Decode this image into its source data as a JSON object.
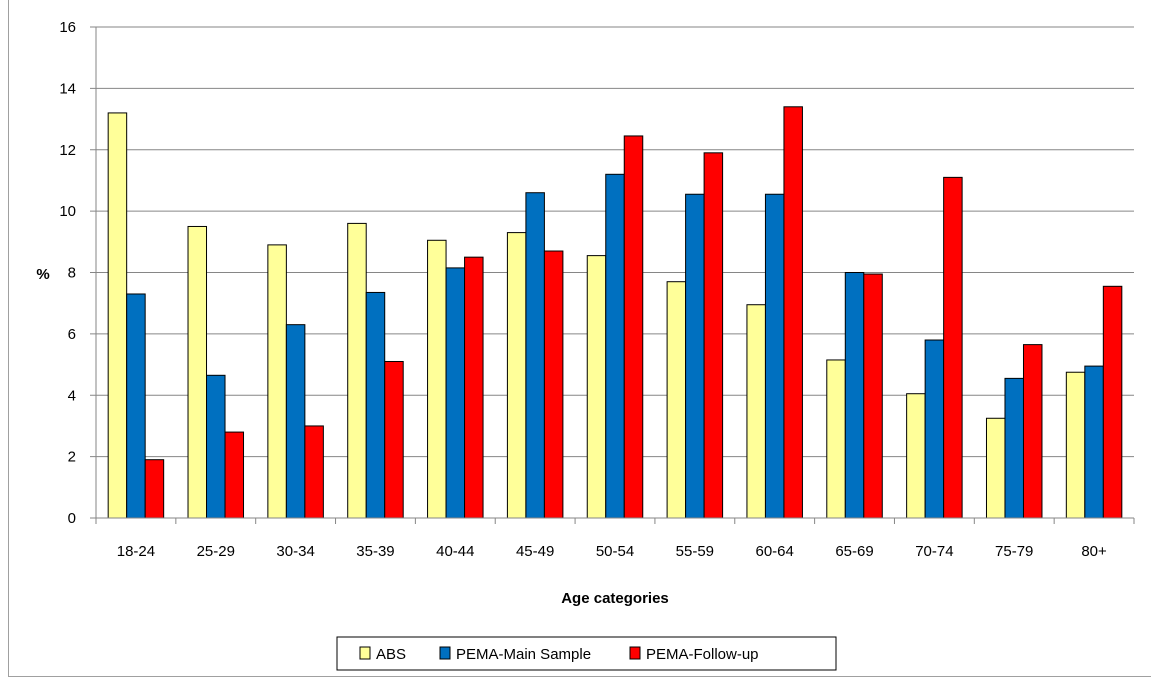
{
  "chart_data": {
    "type": "bar",
    "xlabel": "Age categories",
    "ylabel": "%",
    "ylim": [
      0,
      16
    ],
    "yticks": [
      0,
      2,
      4,
      6,
      8,
      10,
      12,
      14,
      16
    ],
    "grid": true,
    "legend_position": "bottom",
    "categories": [
      "18-24",
      "25-29",
      "30-34",
      "35-39",
      "40-44",
      "45-49",
      "50-54",
      "55-59",
      "60-64",
      "65-69",
      "70-74",
      "75-79",
      "80+"
    ],
    "series": [
      {
        "name": "ABS",
        "color": "#ffff99",
        "values": [
          13.2,
          9.5,
          8.9,
          9.6,
          9.05,
          9.3,
          8.55,
          7.7,
          6.95,
          5.15,
          4.05,
          3.25,
          4.75
        ]
      },
      {
        "name": "PEMA-Main Sample",
        "color": "#0070c0",
        "values": [
          7.3,
          4.65,
          6.3,
          7.35,
          8.15,
          10.6,
          11.2,
          10.55,
          10.55,
          8.0,
          5.8,
          4.55,
          4.95
        ]
      },
      {
        "name": "PEMA-Follow-up",
        "color": "#ff0000",
        "values": [
          1.9,
          2.8,
          3.0,
          5.1,
          8.5,
          8.7,
          12.45,
          11.9,
          13.4,
          7.95,
          11.1,
          5.65,
          7.55
        ]
      }
    ]
  }
}
